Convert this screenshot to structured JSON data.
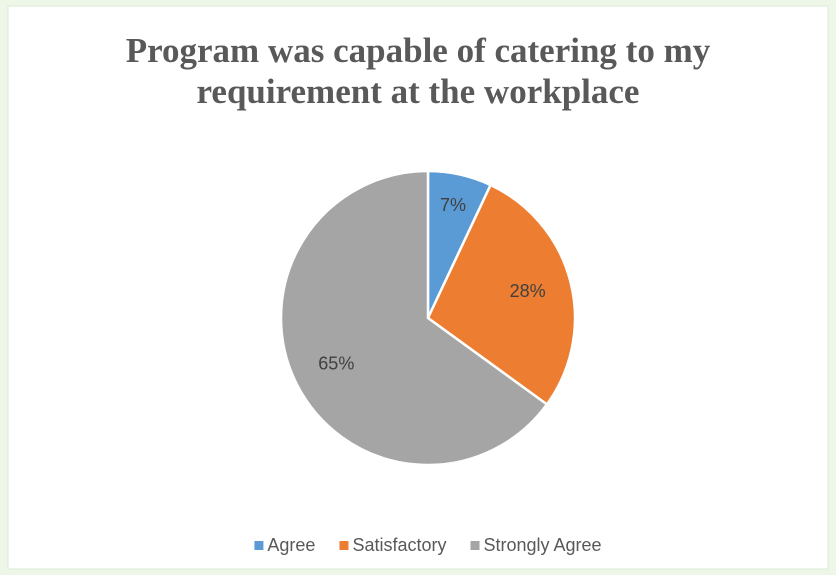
{
  "chart_data": {
    "type": "pie",
    "title": "Program was capable of catering to my requirement at the workplace",
    "categories": [
      "Agree",
      "Satisfactory",
      "Strongly Agree"
    ],
    "values": [
      7,
      28,
      65
    ],
    "value_labels": [
      "7%",
      "28%",
      "65%"
    ],
    "colors": [
      "#5b9bd5",
      "#ed7d31",
      "#a5a5a5"
    ],
    "legend": "bottom"
  }
}
